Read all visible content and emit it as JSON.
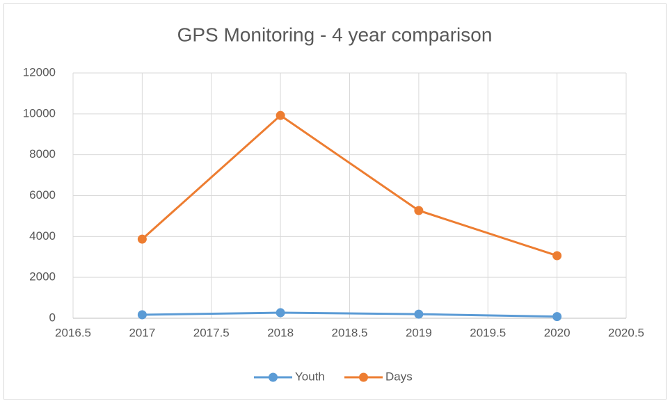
{
  "chart_data": {
    "type": "line",
    "title": "GPS Monitoring - 4 year comparison",
    "x": [
      2017,
      2018,
      2019,
      2020
    ],
    "series": [
      {
        "name": "Youth",
        "color": "#5b9bd5",
        "values": [
          170,
          270,
          200,
          80
        ]
      },
      {
        "name": "Days",
        "color": "#ed7d31",
        "values": [
          3870,
          9920,
          5270,
          3060
        ]
      }
    ],
    "xlim": [
      2016.5,
      2020.5
    ],
    "xticks": [
      2016.5,
      2017,
      2017.5,
      2018,
      2018.5,
      2019,
      2019.5,
      2020,
      2020.5
    ],
    "ylim": [
      0,
      12000
    ],
    "yticks": [
      0,
      2000,
      4000,
      6000,
      8000,
      10000,
      12000
    ],
    "grid": true,
    "legend": "bottom"
  }
}
